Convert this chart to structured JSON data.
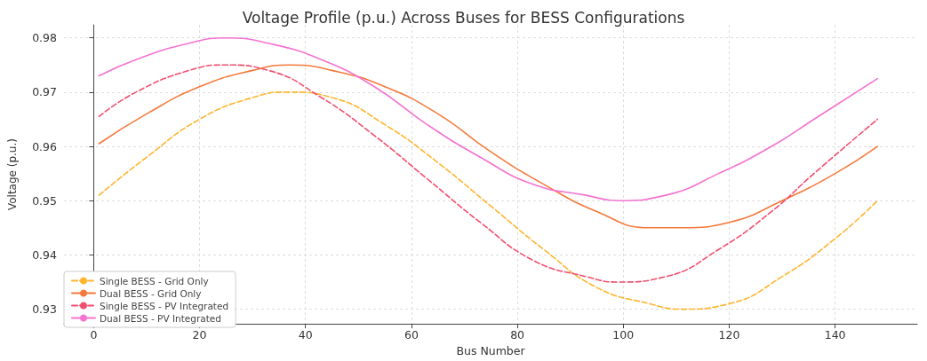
{
  "chart_data": {
    "type": "line",
    "title": "Voltage Profile (p.u.) Across Buses for BESS Configurations",
    "xlabel": "Bus Number",
    "ylabel": "Voltage (p.u.)",
    "xlim": [
      -5.6,
      155.5
    ],
    "xticks": [
      0,
      20,
      40,
      60,
      80,
      100,
      120,
      140
    ],
    "ylim": [
      0.9273,
      0.9824
    ],
    "yticks": [
      0.93,
      0.94,
      0.95,
      0.96,
      0.97,
      0.98
    ],
    "grid": true,
    "legend": "bottom left",
    "marker": "none",
    "series": [
      {
        "name": "Single BESS - Grid Only",
        "color": "#ffb42e",
        "line_style": "dashed",
        "x": [
          1,
          10,
          20,
          30,
          37,
          45,
          55,
          65,
          75,
          85,
          95,
          105,
          111,
          120,
          130,
          140,
          148
        ],
        "values": [
          0.951,
          0.958,
          0.965,
          0.969,
          0.97,
          0.969,
          0.964,
          0.957,
          0.949,
          0.941,
          0.934,
          0.931,
          0.93,
          0.931,
          0.936,
          0.943,
          0.95
        ]
      },
      {
        "name": "Dual BESS - Grid Only",
        "color": "#f5793a",
        "line_style": "solid",
        "x": [
          1,
          10,
          20,
          30,
          37,
          45,
          55,
          65,
          75,
          85,
          95,
          105,
          111,
          120,
          130,
          140,
          148
        ],
        "values": [
          0.9605,
          0.966,
          0.971,
          0.974,
          0.975,
          0.974,
          0.971,
          0.966,
          0.959,
          0.953,
          0.948,
          0.945,
          0.945,
          0.946,
          0.95,
          0.955,
          0.96
        ]
      },
      {
        "name": "Single BESS - PV Integrated",
        "color": "#f04e6e",
        "line_style": "dashed",
        "x": [
          1,
          8,
          18,
          25,
          33,
          43,
          53,
          63,
          73,
          83,
          93,
          99,
          108,
          118,
          128,
          136,
          148
        ],
        "values": [
          0.9655,
          0.97,
          0.974,
          0.975,
          0.974,
          0.969,
          0.962,
          0.954,
          0.946,
          0.939,
          0.936,
          0.935,
          0.936,
          0.941,
          0.948,
          0.955,
          0.965
        ]
      },
      {
        "name": "Dual BESS - PV Integrated",
        "color": "#f472d0",
        "line_style": "solid",
        "x": [
          1,
          8,
          18,
          25,
          33,
          43,
          53,
          63,
          73,
          83,
          93,
          99,
          108,
          118,
          128,
          136,
          148
        ],
        "values": [
          0.973,
          0.976,
          0.979,
          0.98,
          0.979,
          0.976,
          0.971,
          0.964,
          0.958,
          0.953,
          0.951,
          0.95,
          0.951,
          0.955,
          0.96,
          0.965,
          0.9725
        ]
      }
    ]
  }
}
